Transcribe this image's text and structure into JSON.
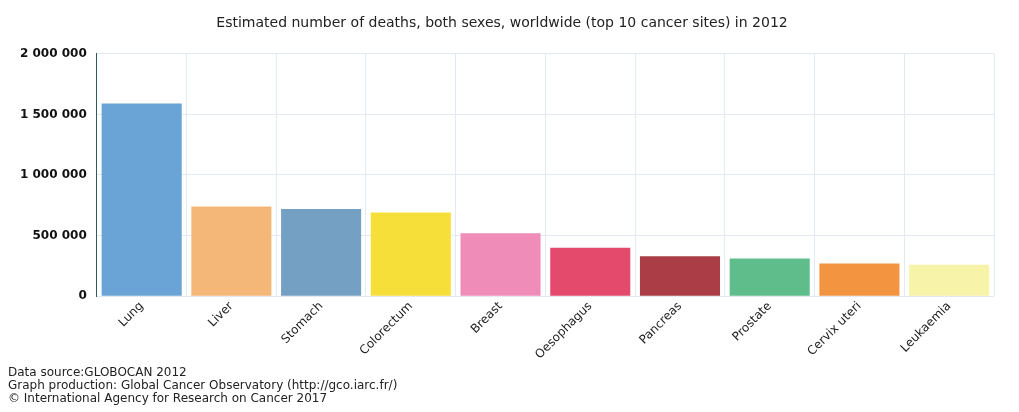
{
  "chart_data": {
    "type": "bar",
    "title": "Estimated number of deaths, both sexes, worldwide (top 10 cancer sites) in 2012",
    "categories": [
      "Lung",
      "Liver",
      "Stomach",
      "Colorectum",
      "Breast",
      "Oesophagus",
      "Pancreas",
      "Prostate",
      "Cervix uteri",
      "Leukaemia"
    ],
    "values": [
      1590000,
      740000,
      720000,
      690000,
      520000,
      400000,
      330000,
      310000,
      270000,
      260000
    ],
    "colors": [
      "#6aa3d6",
      "#f5b778",
      "#74a0c4",
      "#f7df3a",
      "#ef8cb8",
      "#e34a6c",
      "#ab3d46",
      "#5fbd8c",
      "#f39440",
      "#f7f3a8"
    ],
    "ylim": [
      0,
      2000000
    ],
    "yticks": [
      {
        "value": 0,
        "label": "0"
      },
      {
        "value": 500000,
        "label": "500 000"
      },
      {
        "value": 1000000,
        "label": "1 000 000"
      },
      {
        "value": 1500000,
        "label": "1 500 000"
      },
      {
        "value": 2000000,
        "label": "2 000 000"
      }
    ],
    "grid": true,
    "legend": false,
    "annotations": [
      "Data source:GLOBOCAN 2012",
      "Graph production: Global Cancer Observatory (http://gco.iarc.fr/)",
      "© International Agency for Research on Cancer 2017"
    ]
  }
}
